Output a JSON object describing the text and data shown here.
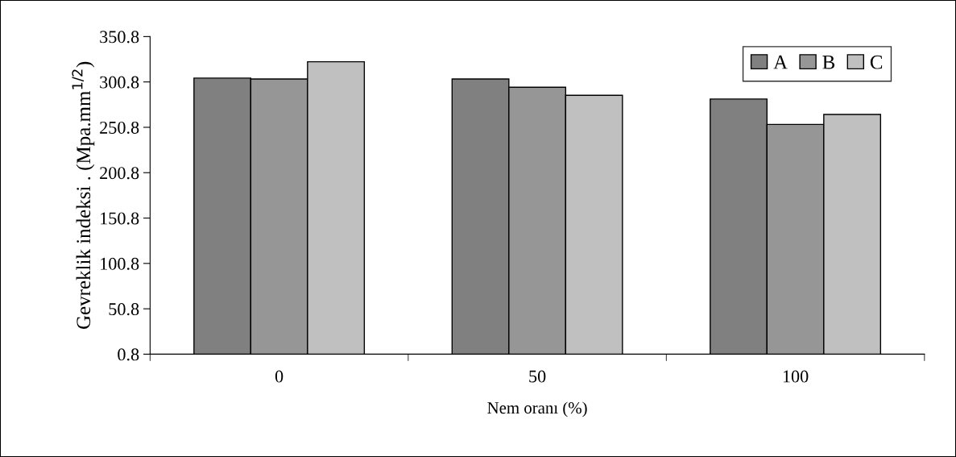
{
  "chart_data": {
    "type": "bar",
    "xlabel": "Nem oranı (%)",
    "ylabel": "Gevreklik indeksi . (Mpa.mm$^{1/2}$)",
    "categories": [
      "0",
      "50",
      "100"
    ],
    "series": [
      {
        "name": "A",
        "color": "#808080",
        "values": [
          305,
          304,
          282
        ]
      },
      {
        "name": "B",
        "color": "#969696",
        "values": [
          304,
          295,
          254
        ]
      },
      {
        "name": "C",
        "color": "#c0c0c0",
        "values": [
          323,
          286,
          265
        ]
      }
    ],
    "ylim": [
      0.8,
      350.8
    ],
    "yticks": [
      0.8,
      50.8,
      100.8,
      150.8,
      200.8,
      250.8,
      300.8,
      350.8
    ],
    "grid": false,
    "legend": "top right"
  }
}
